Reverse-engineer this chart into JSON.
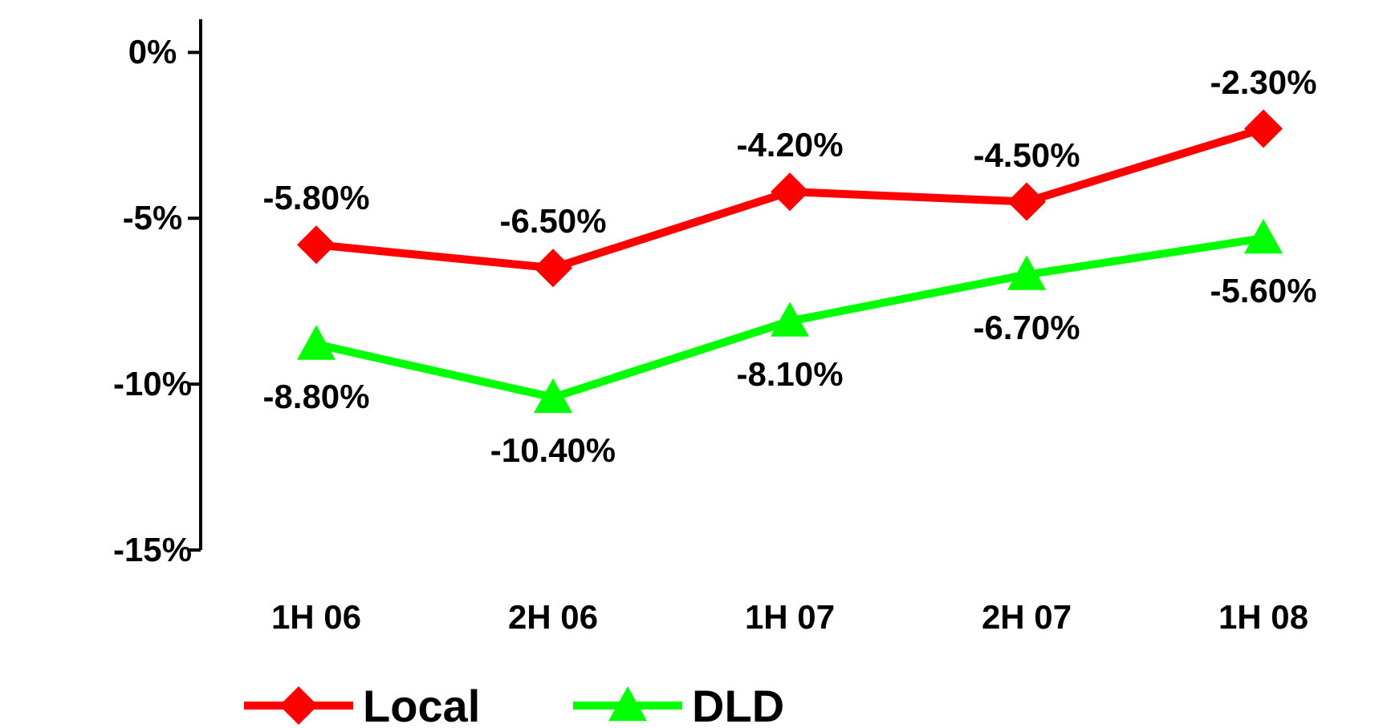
{
  "chart_data": {
    "type": "line",
    "categories": [
      "1H 06",
      "2H 06",
      "1H 07",
      "2H 07",
      "1H 08"
    ],
    "series": [
      {
        "name": "Local",
        "color": "#ff0000",
        "marker": "diamond",
        "values": [
          -5.8,
          -6.5,
          -4.2,
          -4.5,
          -2.3
        ],
        "value_labels": [
          "-5.80%",
          "-6.50%",
          "-4.20%",
          "-4.50%",
          "-2.30%"
        ]
      },
      {
        "name": "DLD",
        "color": "#00ff00",
        "marker": "triangle",
        "values": [
          -8.8,
          -10.4,
          -8.1,
          -6.7,
          -5.6
        ],
        "value_labels": [
          "-8.80%",
          "-10.40%",
          "-8.10%",
          "-6.70%",
          "-5.60%"
        ]
      }
    ],
    "ylim": [
      -15,
      1
    ],
    "yticks": [
      {
        "value": 0,
        "label": "0%"
      },
      {
        "value": -5,
        "label": "-5%"
      },
      {
        "value": -10,
        "label": "-10%"
      },
      {
        "value": -15,
        "label": "-15%"
      }
    ],
    "grid": false,
    "legend": "bottom"
  }
}
